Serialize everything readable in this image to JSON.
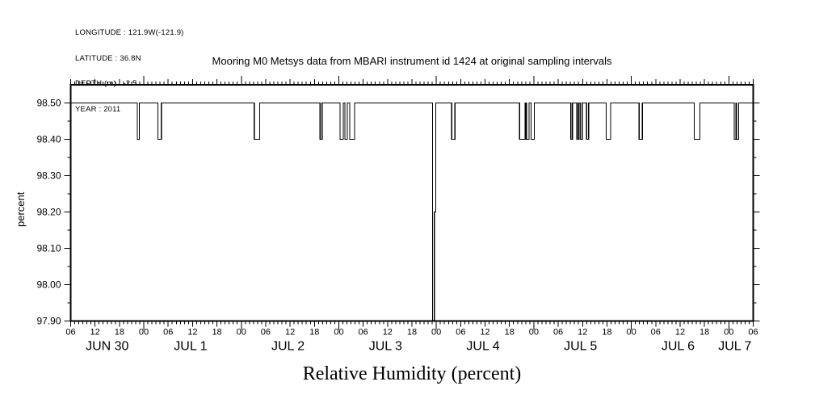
{
  "meta": {
    "lines": [
      "LONGITUDE : 121.9W(-121.9)",
      "LATITUDE : 36.8N",
      "DEPTH (m) : -2.5",
      "YEAR : 2011"
    ]
  },
  "colors": {
    "foreground": "#000000",
    "background": "#ffffff",
    "line": "#000000"
  },
  "chart_data": {
    "type": "line",
    "title": "Mooring M0 Metsys data from MBARI instrument id 1424 at original sampling intervals",
    "xlabel": "Relative Humidity (percent)",
    "ylabel": "percent",
    "x_start": "JUN 30 06:00 2011",
    "x_end": "JUL 7 06:00 2011",
    "x_total_hours": 168,
    "x_major_tick_interval_hours": 6,
    "x_minor_tick_interval_hours": 1,
    "x_hour_tick_labels": [
      "06",
      "12",
      "18",
      "00",
      "06",
      "12",
      "18",
      "00",
      "06",
      "12",
      "18",
      "00",
      "06",
      "12",
      "18",
      "00",
      "06",
      "12",
      "18",
      "00",
      "06",
      "12",
      "18",
      "00",
      "06",
      "12",
      "18",
      "00",
      "06"
    ],
    "x_date_labels": [
      {
        "label": "JUN 30",
        "hour": 9
      },
      {
        "label": "JUL 1",
        "hour": 29.5
      },
      {
        "label": "JUL 2",
        "hour": 53.5
      },
      {
        "label": "JUL 3",
        "hour": 77.5
      },
      {
        "label": "JUL 4",
        "hour": 101.5
      },
      {
        "label": "JUL 5",
        "hour": 125.5
      },
      {
        "label": "JUL 6",
        "hour": 149.5
      },
      {
        "label": "JUL 7",
        "hour": 163.5
      }
    ],
    "y_ticks": [
      97.9,
      98.0,
      98.1,
      98.2,
      98.3,
      98.4,
      98.5
    ],
    "y_tick_labels": [
      "97.90",
      "98.00",
      "98.10",
      "98.20",
      "98.30",
      "98.40",
      "98.50"
    ],
    "y_minor_tick_step": 0.05,
    "ylim": [
      97.9,
      98.55
    ],
    "grid": false,
    "legend": "none",
    "baseline_value": 98.5,
    "dip_value": 98.4,
    "dips_hours": [
      [
        16.4,
        16.9
      ],
      [
        21.5,
        22.3
      ],
      [
        45.2,
        46.5
      ],
      [
        61.4,
        61.9
      ],
      [
        66.3,
        67.1
      ],
      [
        67.5,
        68.1
      ],
      [
        68.7,
        69.9
      ],
      [
        93.8,
        94.6
      ],
      [
        110.5,
        111.9
      ],
      [
        112.2,
        112.8
      ],
      [
        113.3,
        114.1
      ],
      [
        123.1,
        123.5
      ],
      [
        124.6,
        125.0
      ],
      [
        125.4,
        125.9
      ],
      [
        127.0,
        127.5
      ],
      [
        131.8,
        132.9
      ],
      [
        139.9,
        140.7
      ],
      [
        153.5,
        154.9
      ],
      [
        163.3,
        163.7
      ],
      [
        163.9,
        164.4
      ]
    ],
    "deep_dip": {
      "start_hour": 89.05,
      "mid_hour": 89.5,
      "end_hour": 89.85,
      "min_value": 97.9,
      "shoulder_value": 98.2
    }
  }
}
